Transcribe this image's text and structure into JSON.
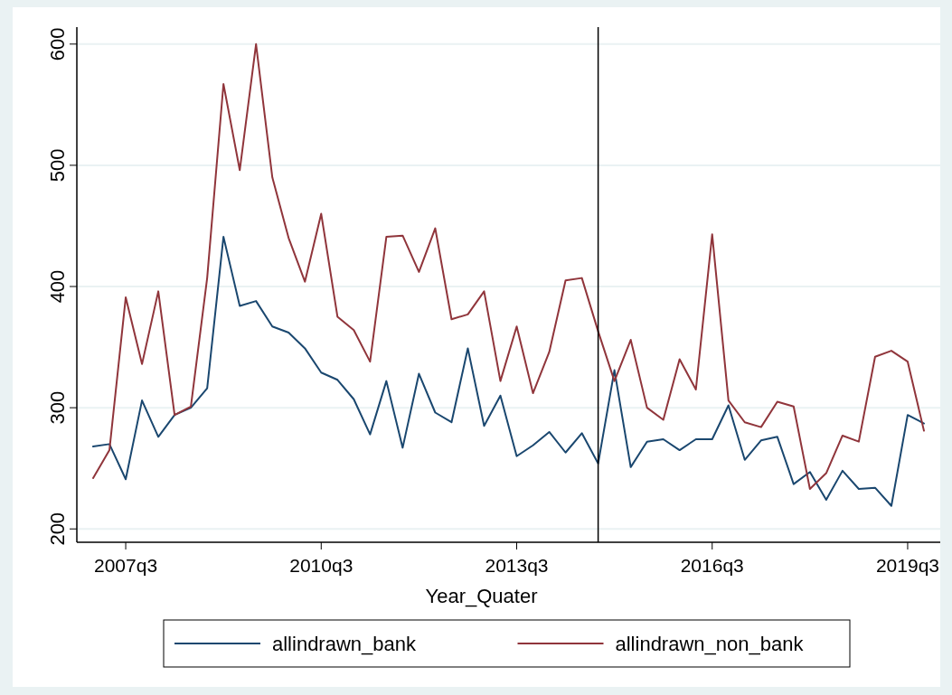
{
  "chart_data": {
    "type": "line",
    "xlabel": "Year_Quater",
    "x": [
      "2007-01",
      "2007-04",
      "2007-07",
      "2007-10",
      "2008-01",
      "2008-04",
      "2008-07",
      "2008-10",
      "2009-01",
      "2009-04",
      "2009-07",
      "2009-10",
      "2010-01",
      "2010-04",
      "2010-07",
      "2010-10",
      "2011-01",
      "2011-04",
      "2011-07",
      "2011-10",
      "2012-01",
      "2012-04",
      "2012-07",
      "2012-10",
      "2013-01",
      "2013-04",
      "2013-07",
      "2013-10",
      "2014-01",
      "2014-04",
      "2014-07",
      "2014-10",
      "2015-01",
      "2015-04",
      "2015-07",
      "2015-10",
      "2016-01",
      "2016-04",
      "2016-07",
      "2016-10",
      "2017-01",
      "2017-04",
      "2017-07",
      "2017-10",
      "2018-01",
      "2018-04",
      "2018-07",
      "2018-10",
      "2019-01",
      "2019-04",
      "2019-07",
      "2019-10"
    ],
    "xlim": [
      "2006-10",
      "2020-01"
    ],
    "xticks": [
      {
        "value": "2007-07",
        "label": "2007q3"
      },
      {
        "value": "2010-07",
        "label": "2010q3"
      },
      {
        "value": "2013-07",
        "label": "2013q3"
      },
      {
        "value": "2016-07",
        "label": "2016q3"
      },
      {
        "value": "2019-07",
        "label": "2019q3"
      }
    ],
    "ylim": [
      189,
      614
    ],
    "yticks": [
      200,
      300,
      400,
      500,
      600
    ],
    "grid": "y",
    "legend": "bottom",
    "line_style": "solid",
    "marker": "none",
    "ref_lines": [
      {
        "axis": "x",
        "value": "2014-10",
        "color": "#000000"
      }
    ],
    "series": [
      {
        "name": "allindrawn_bank",
        "color": "#1a476f",
        "values": [
          268,
          270,
          241,
          306,
          276,
          294,
          300,
          316,
          441,
          384,
          388,
          367,
          362,
          349,
          329,
          323,
          307,
          278,
          322,
          267,
          328,
          296,
          288,
          349,
          285,
          310,
          260,
          269,
          280,
          263,
          279,
          254,
          331,
          251,
          272,
          274,
          265,
          274,
          274,
          302,
          257,
          273,
          276,
          237,
          247,
          224,
          248,
          233,
          234,
          219,
          294,
          287
        ]
      },
      {
        "name": "allindrawn_non_bank",
        "color": "#90353b",
        "values": [
          242,
          265,
          391,
          336,
          396,
          294,
          301,
          407,
          567,
          496,
          600,
          490,
          440,
          404,
          460,
          375,
          364,
          338,
          441,
          442,
          412,
          448,
          373,
          377,
          396,
          322,
          367,
          312,
          346,
          405,
          407,
          363,
          322,
          356,
          300,
          290,
          340,
          315,
          443,
          306,
          288,
          284,
          305,
          301,
          233,
          246,
          277,
          272,
          342,
          347,
          338,
          281
        ]
      }
    ]
  }
}
